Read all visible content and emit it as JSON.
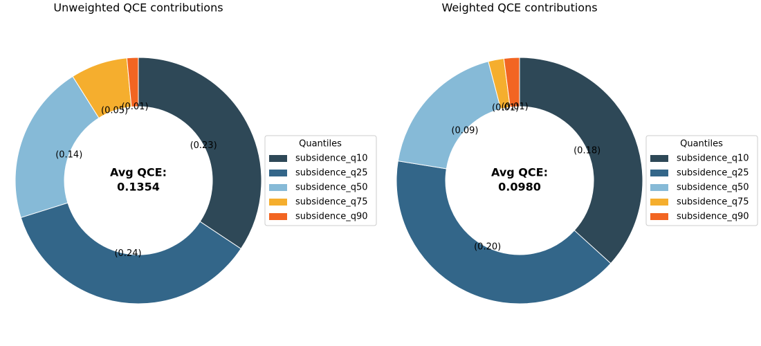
{
  "chart_data": [
    {
      "type": "donut",
      "title": "Unweighted QCE contributions",
      "categories": [
        "subsidence_q10",
        "subsidence_q25",
        "subsidence_q50",
        "subsidence_q75",
        "subsidence_q90"
      ],
      "values": [
        0.23,
        0.24,
        0.14,
        0.05,
        0.01
      ],
      "value_labels": [
        "(0.23)",
        "(0.24)",
        "(0.14)",
        "(0.05)",
        "(0.01)"
      ],
      "colors": [
        "#2e4857",
        "#336689",
        "#86bad7",
        "#f5ae2e",
        "#f26522"
      ],
      "legend_title": "Quantiles",
      "center_label": "Avg QCE:",
      "average": 0.1354
    },
    {
      "type": "donut",
      "title": "Weighted QCE contributions",
      "categories": [
        "subsidence_q10",
        "subsidence_q25",
        "subsidence_q50",
        "subsidence_q75",
        "subsidence_q90"
      ],
      "values": [
        0.18,
        0.2,
        0.09,
        0.01,
        0.01
      ],
      "value_labels": [
        "(0.18)",
        "(0.20)",
        "(0.09)",
        "(0.01)",
        "(0.01)"
      ],
      "colors": [
        "#2e4857",
        "#336689",
        "#86bad7",
        "#f5ae2e",
        "#f26522"
      ],
      "legend_title": "Quantiles",
      "center_label": "Avg QCE:",
      "average": {
        "value": 0.098,
        "label": "0.0980"
      }
    }
  ]
}
